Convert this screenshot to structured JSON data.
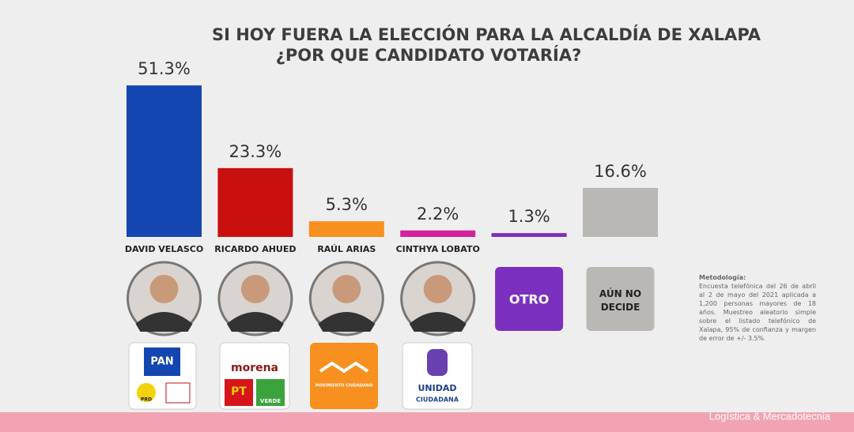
{
  "chart_data": {
    "type": "bar",
    "title": "SI HOY FUERA LA ELECCIÓN PARA LA ALCALDÍA DE XALAPA",
    "subtitle": "¿POR QUE CANDIDATO VOTARÍA?",
    "categories": [
      "DAVID VELASCO",
      "RICARDO AHUED",
      "RAÚL ARIAS",
      "CINTHYA LOBATO",
      null,
      null
    ],
    "values": [
      51.3,
      23.3,
      5.3,
      2.2,
      1.3,
      16.6
    ],
    "value_labels": [
      "51.3%",
      "23.3%",
      "5.3%",
      "2.2%",
      "1.3%",
      "16.6%"
    ],
    "colors": [
      "#1346b0",
      "#c8100f",
      "#f7901e",
      "#d3229a",
      "#7b2fbf",
      "#b9b8b5"
    ],
    "option_labels": [
      "OTRO",
      "AÚN NO DECIDE"
    ],
    "logos": [
      [
        "PAN",
        "PRD"
      ],
      [
        "morena",
        "PT",
        "VERDE"
      ],
      [
        "MOVIMIENTO CIUDADANO"
      ],
      [
        "UNIDAD",
        "CIUDADANA"
      ]
    ],
    "methodology_title": "Metodología:",
    "methodology": "Encuesta telefónica del 26 de abril al 2 de mayo del 2021 aplicada a 1,200 personas mayores de 18 años. Muestreo aleatorio simple sobre el listado telefónico de Xalapa, 95% de confianza y margen de error de +/- 3.5%",
    "source": "Logística & Mercadotecnia"
  }
}
